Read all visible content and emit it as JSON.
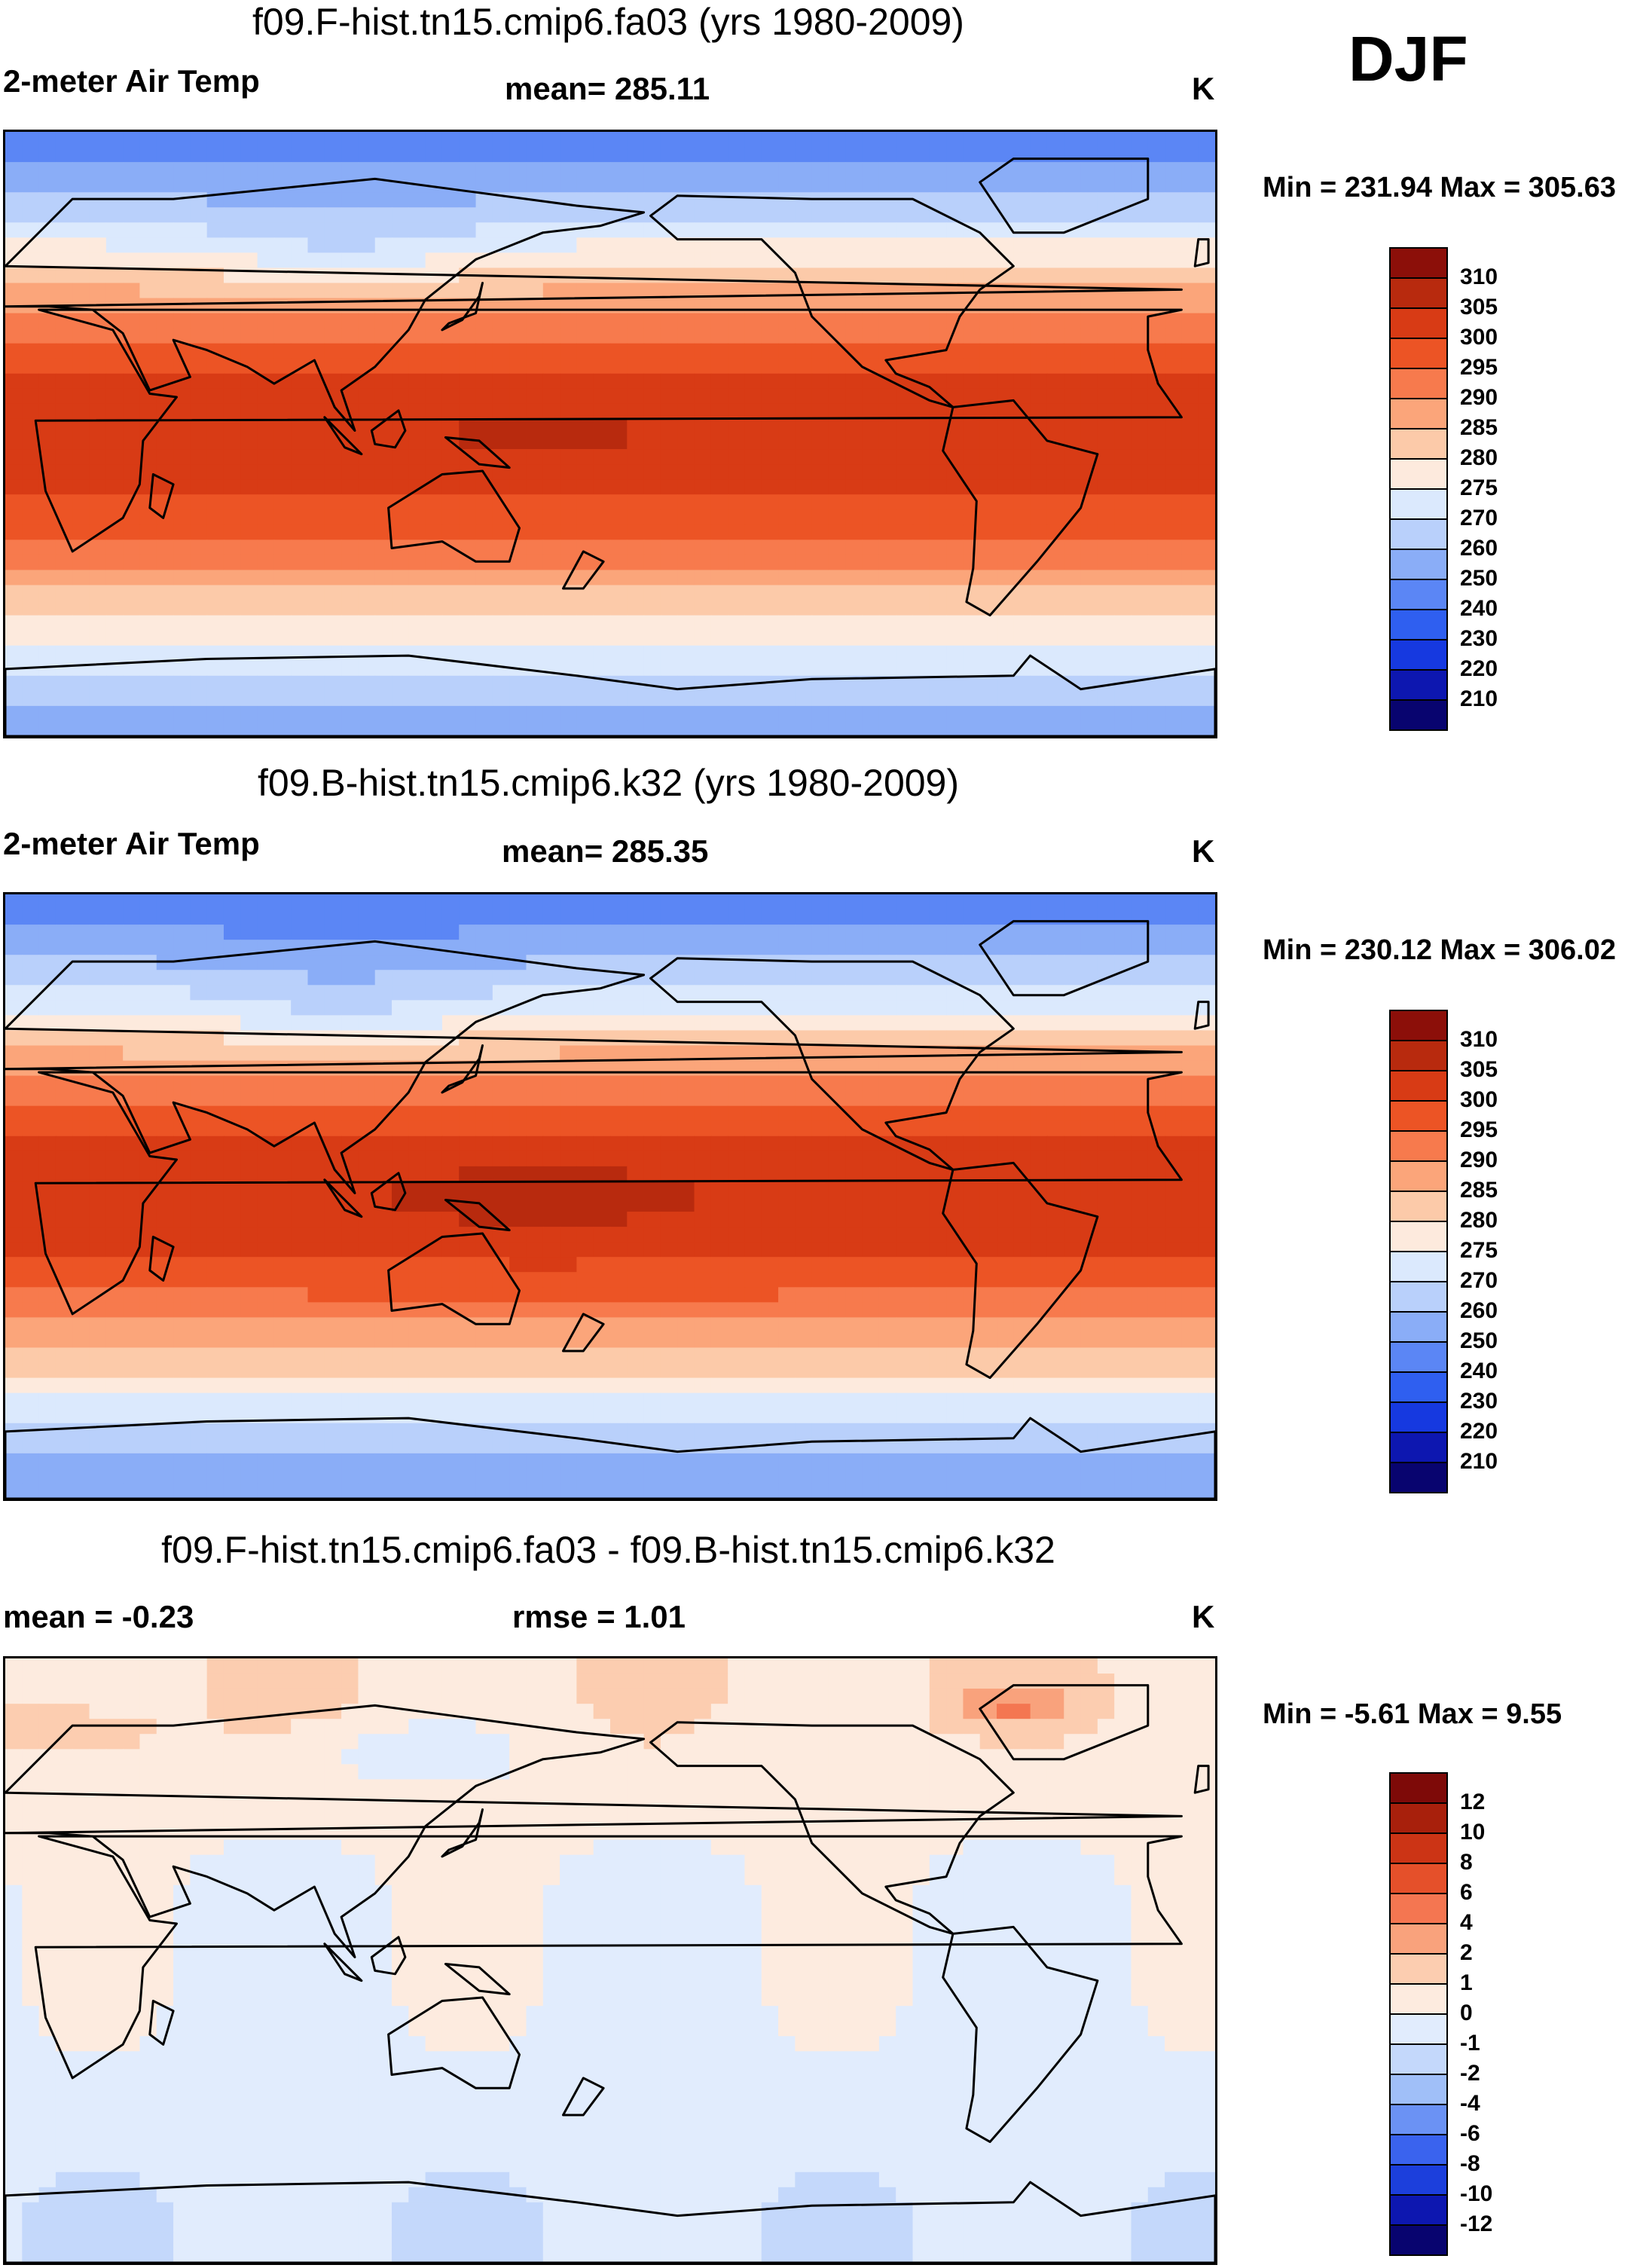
{
  "season": "DJF",
  "variable_unit": "K",
  "palettes": {
    "temperature": [
      "#08046f",
      "#0d17b0",
      "#1639e0",
      "#2f5ff0",
      "#5b86f5",
      "#8aadf7",
      "#b9d0fb",
      "#dbe9fd",
      "#fdeadd",
      "#fccaa9",
      "#fba57a",
      "#f77a4d",
      "#ec5425",
      "#d83b15",
      "#b82a0e",
      "#8c0f09"
    ],
    "difference": [
      "#08046f",
      "#0d17b0",
      "#1c3fdc",
      "#3a63ee",
      "#6b92f4",
      "#a0bff8",
      "#c4d8fb",
      "#e1ecfd",
      "#fdebdf",
      "#fccdb0",
      "#f9a27c",
      "#f47651",
      "#e5502a",
      "#cc3415",
      "#a8200c",
      "#7e0a08"
    ]
  },
  "chart_data": [
    {
      "type": "heatmap",
      "title": "f09.F-hist.tn15.cmip6.fa03 (yrs 1980-2009)",
      "left_label": "2-meter Air Temp",
      "center_label": "mean= 285.11",
      "right_label": "K",
      "stats": "Min = 231.94 Max = 305.63",
      "mean": 285.11,
      "min": 231.94,
      "max": 305.63,
      "colorbar_levels": [
        "310",
        "305",
        "300",
        "295",
        "290",
        "285",
        "280",
        "275",
        "270",
        "260",
        "250",
        "240",
        "230",
        "220",
        "210"
      ],
      "pattern": {
        "equator": 298.5,
        "pole_south": 244,
        "pole_north": 236,
        "warm_pool": 3.5
      },
      "palette": "temperature",
      "xlim": [
        0,
        360
      ],
      "ylim": [
        -90,
        90
      ]
    },
    {
      "type": "heatmap",
      "title": "f09.B-hist.tn15.cmip6.k32 (yrs 1980-2009)",
      "left_label": "2-meter Air Temp",
      "center_label": "mean= 285.35",
      "right_label": "K",
      "stats": "Min = 230.12 Max = 306.02",
      "mean": 285.35,
      "min": 230.12,
      "max": 306.02,
      "colorbar_levels": [
        "310",
        "305",
        "300",
        "295",
        "290",
        "285",
        "280",
        "275",
        "270",
        "260",
        "250",
        "240",
        "230",
        "220",
        "210"
      ],
      "pattern": {
        "equator": 299,
        "pole_south": 240,
        "pole_north": 235,
        "warm_pool": 4
      },
      "palette": "temperature",
      "xlim": [
        0,
        360
      ],
      "ylim": [
        -90,
        90
      ]
    },
    {
      "type": "heatmap",
      "title": "f09.F-hist.tn15.cmip6.fa03 - f09.B-hist.tn15.cmip6.k32",
      "left_label": "mean =  -0.23",
      "center_label": "rmse =   1.01",
      "right_label": "K",
      "stats": "Min =  -5.61 Max =   9.55",
      "mean": -0.23,
      "rmse": 1.01,
      "min": -5.61,
      "max": 9.55,
      "colorbar_levels": [
        "12",
        "10",
        "8",
        "6",
        "4",
        "2",
        "1",
        "0",
        "-1",
        "-2",
        "-4",
        "-6",
        "-8",
        "-10",
        "-12"
      ],
      "pattern": {
        "equator": -0.3,
        "pole_south": -1.5,
        "pole_north": 1.5,
        "warm_pool": 0
      },
      "palette": "difference",
      "xlim": [
        0,
        360
      ],
      "ylim": [
        -90,
        90
      ]
    }
  ]
}
